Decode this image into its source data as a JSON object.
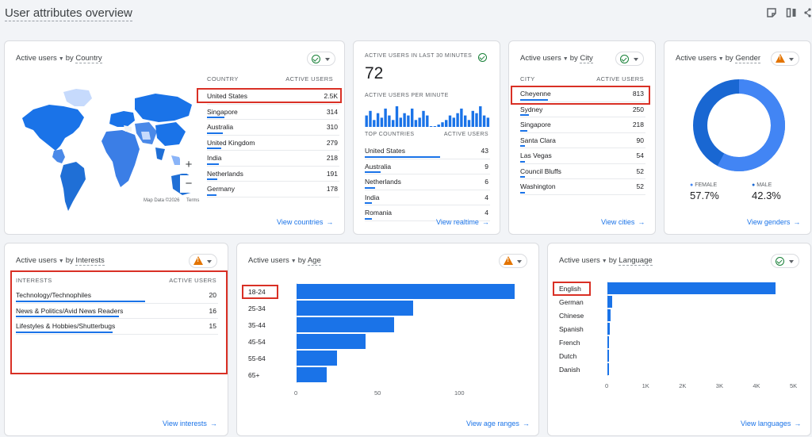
{
  "page_title": "User attributes overview",
  "country_card": {
    "metric": "Active users",
    "dimension": "Country",
    "status": "ok",
    "col_dim": "COUNTRY",
    "col_metric": "ACTIVE USERS",
    "rows": [
      {
        "label": "United States",
        "value": "2.5K",
        "fill": 1.0
      },
      {
        "label": "Singapore",
        "value": "314",
        "fill": 0.13
      },
      {
        "label": "Australia",
        "value": "310",
        "fill": 0.12
      },
      {
        "label": "United Kingdom",
        "value": "279",
        "fill": 0.11
      },
      {
        "label": "India",
        "value": "218",
        "fill": 0.09
      },
      {
        "label": "Netherlands",
        "value": "191",
        "fill": 0.08
      },
      {
        "label": "Germany",
        "value": "178",
        "fill": 0.07
      }
    ],
    "map_attribution": "Map Data ©2026",
    "map_terms": "Terms",
    "zoom_in": "+",
    "zoom_out": "−",
    "link": "View countries"
  },
  "realtime_card": {
    "heading": "ACTIVE USERS IN LAST 30 MINUTES",
    "status": "ok",
    "count": "72",
    "per_minute_label": "ACTIVE USERS PER MINUTE",
    "per_minute": [
      5,
      7,
      3,
      6,
      4,
      8,
      5,
      3,
      9,
      4,
      6,
      5,
      8,
      3,
      4,
      7,
      5,
      0,
      0,
      1,
      2,
      3,
      5,
      4,
      6,
      8,
      5,
      3,
      7,
      6,
      9,
      5,
      4
    ],
    "col_dim": "TOP COUNTRIES",
    "col_metric": "ACTIVE USERS",
    "rows": [
      {
        "label": "United States",
        "value": "43",
        "fill": 1.0
      },
      {
        "label": "Australia",
        "value": "9",
        "fill": 0.21
      },
      {
        "label": "Netherlands",
        "value": "6",
        "fill": 0.14
      },
      {
        "label": "India",
        "value": "4",
        "fill": 0.09
      },
      {
        "label": "Romania",
        "value": "4",
        "fill": 0.09
      }
    ],
    "link": "View realtime"
  },
  "city_card": {
    "metric": "Active users",
    "dimension": "City",
    "status": "ok",
    "col_dim": "CITY",
    "col_metric": "ACTIVE USERS",
    "rows": [
      {
        "label": "Cheyenne",
        "value": "813",
        "fill": 1.0
      },
      {
        "label": "Sydney",
        "value": "250",
        "fill": 0.31
      },
      {
        "label": "Singapore",
        "value": "218",
        "fill": 0.27
      },
      {
        "label": "Santa Clara",
        "value": "90",
        "fill": 0.11
      },
      {
        "label": "Las Vegas",
        "value": "54",
        "fill": 0.07
      },
      {
        "label": "Council Bluffs",
        "value": "52",
        "fill": 0.06
      },
      {
        "label": "Washington",
        "value": "52",
        "fill": 0.06
      }
    ],
    "link": "View cities"
  },
  "gender_card": {
    "metric": "Active users",
    "dimension": "Gender",
    "status": "warn",
    "female_label": "FEMALE",
    "female_value": "57.7%",
    "male_label": "MALE",
    "male_value": "42.3%",
    "female_fraction": 0.577,
    "female_color": "#4285f4",
    "male_color": "#1967d2",
    "link": "View genders"
  },
  "interests_card": {
    "metric": "Active users",
    "dimension": "Interests",
    "status": "warn",
    "col_dim": "INTERESTS",
    "col_metric": "ACTIVE USERS",
    "rows": [
      {
        "label": "Technology/Technophiles",
        "value": "20",
        "fill": 0.64
      },
      {
        "label": "News & Politics/Avid News Readers",
        "value": "16",
        "fill": 0.51
      },
      {
        "label": "Lifestyles & Hobbies/Shutterbugs",
        "value": "15",
        "fill": 0.48
      }
    ],
    "link": "View interests"
  },
  "age_card": {
    "metric": "Active users",
    "dimension": "Age",
    "status": "warn",
    "link": "View age ranges"
  },
  "language_card": {
    "metric": "Active users",
    "dimension": "Language",
    "status": "ok",
    "link": "View languages"
  },
  "chart_data": [
    {
      "type": "bar",
      "orientation": "horizontal",
      "categories": [
        "18-24",
        "25-34",
        "35-44",
        "45-54",
        "55-64",
        "65+"
      ],
      "values": [
        136,
        73,
        61,
        43,
        25,
        19
      ],
      "xlim": [
        0,
        150
      ],
      "xticks": [
        "0",
        "50",
        "100"
      ],
      "color": "#1a73e8"
    },
    {
      "type": "bar",
      "orientation": "horizontal",
      "categories": [
        "English",
        "German",
        "Chinese",
        "Spanish",
        "French",
        "Dutch",
        "Danish"
      ],
      "values": [
        4550,
        120,
        90,
        70,
        40,
        30,
        20
      ],
      "xlim": [
        0,
        5000
      ],
      "xticks": [
        "0",
        "1K",
        "2K",
        "3K",
        "4K",
        "5K"
      ],
      "color": "#1a73e8"
    }
  ]
}
